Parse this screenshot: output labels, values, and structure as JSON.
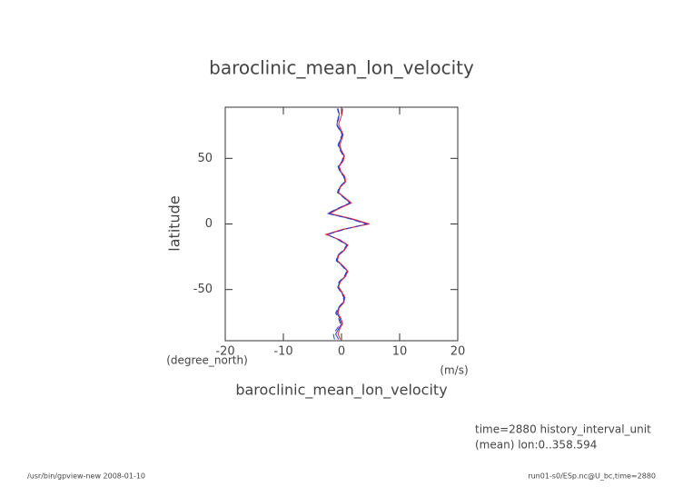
{
  "chart_data": {
    "type": "line",
    "title": "baroclinic_mean_lon_velocity",
    "x_label": "baroclinic_mean_lon_velocity",
    "x_unit": "(m/s)",
    "y_label": "latitude",
    "y_unit": "(degree_north)",
    "annotations": [
      "time=2880 history_interval_unit",
      "(mean) lon:0..358.594"
    ],
    "footer_left": "/usr/bin/gpview-new  2008-01-10",
    "footer_right": "run01-s0/ESp.nc@U_bc,time=2880",
    "latitude": [
      -88,
      -84,
      -80,
      -76,
      -72,
      -68,
      -64,
      -60,
      -56,
      -52,
      -48,
      -44,
      -40,
      -36,
      -32,
      -28,
      -24,
      -20,
      -16,
      -12,
      -8,
      -4,
      0,
      4,
      8,
      12,
      16,
      20,
      24,
      28,
      32,
      36,
      40,
      44,
      48,
      52,
      56,
      60,
      64,
      68,
      72,
      76,
      80,
      84,
      88
    ],
    "series": [
      {
        "color": "#2a3cc8",
        "dash": false,
        "values": [
          -0.5,
          -1.0,
          -0.5,
          0,
          -0.3,
          -0.8,
          -0.5,
          0.3,
          0.5,
          0,
          -0.6,
          -0.3,
          0.6,
          1.0,
          0.2,
          -0.8,
          -0.6,
          0.4,
          1.0,
          -0.5,
          -2.5,
          0.5,
          4.5,
          1.5,
          -2.3,
          -0.5,
          1.5,
          0.5,
          -0.6,
          -0.3,
          0.6,
          0.5,
          -0.2,
          -0.5,
          0.2,
          0.4,
          -0.1,
          -0.5,
          -0.2,
          0.2,
          -0.3,
          -0.8,
          -0.5,
          -0.4,
          -0.6
        ]
      },
      {
        "color": "#e0243c",
        "dash": false,
        "values": [
          -0.2,
          -0.6,
          -0.3,
          0.2,
          -0.1,
          -0.6,
          -0.4,
          0.4,
          0.6,
          0.1,
          -0.5,
          -0.2,
          0.7,
          1.1,
          0.3,
          -0.7,
          -0.5,
          0.5,
          1.1,
          -0.3,
          -2.7,
          0.3,
          4.8,
          1.8,
          -2.0,
          -0.3,
          1.7,
          0.6,
          -0.5,
          -0.2,
          0.7,
          0.6,
          -0.1,
          -0.4,
          0.3,
          0.5,
          0,
          -0.3,
          0,
          0.3,
          -0.1,
          -0.5,
          -0.2,
          0.1,
          0.2
        ]
      },
      {
        "color": "#2a3cc8",
        "dash": true,
        "values": [
          -1.2,
          -1.4,
          -0.8,
          -0.2,
          -0.5,
          -1.0,
          -0.6,
          0.2,
          0.4,
          -0.1,
          -0.7,
          -0.4,
          0.5,
          0.9,
          0.1,
          -0.9,
          -0.7,
          0.3,
          0.9,
          -0.6,
          -2.4,
          0.6,
          4.3,
          1.4,
          -2.4,
          -0.6,
          1.4,
          0.4,
          -0.7,
          -0.4,
          0.5,
          0.4,
          -0.3,
          -0.6,
          0.1,
          0.3,
          -0.2,
          -0.6,
          -0.3,
          0.1,
          -0.4,
          -0.9,
          -0.6,
          -0.5,
          -0.7
        ]
      }
    ],
    "xlim": [
      -20,
      20
    ],
    "ylim": [
      -89,
      89
    ],
    "xticks": [
      -20,
      -10,
      0,
      10,
      20
    ],
    "yticks": [
      -50,
      0,
      50
    ],
    "grid": false
  }
}
